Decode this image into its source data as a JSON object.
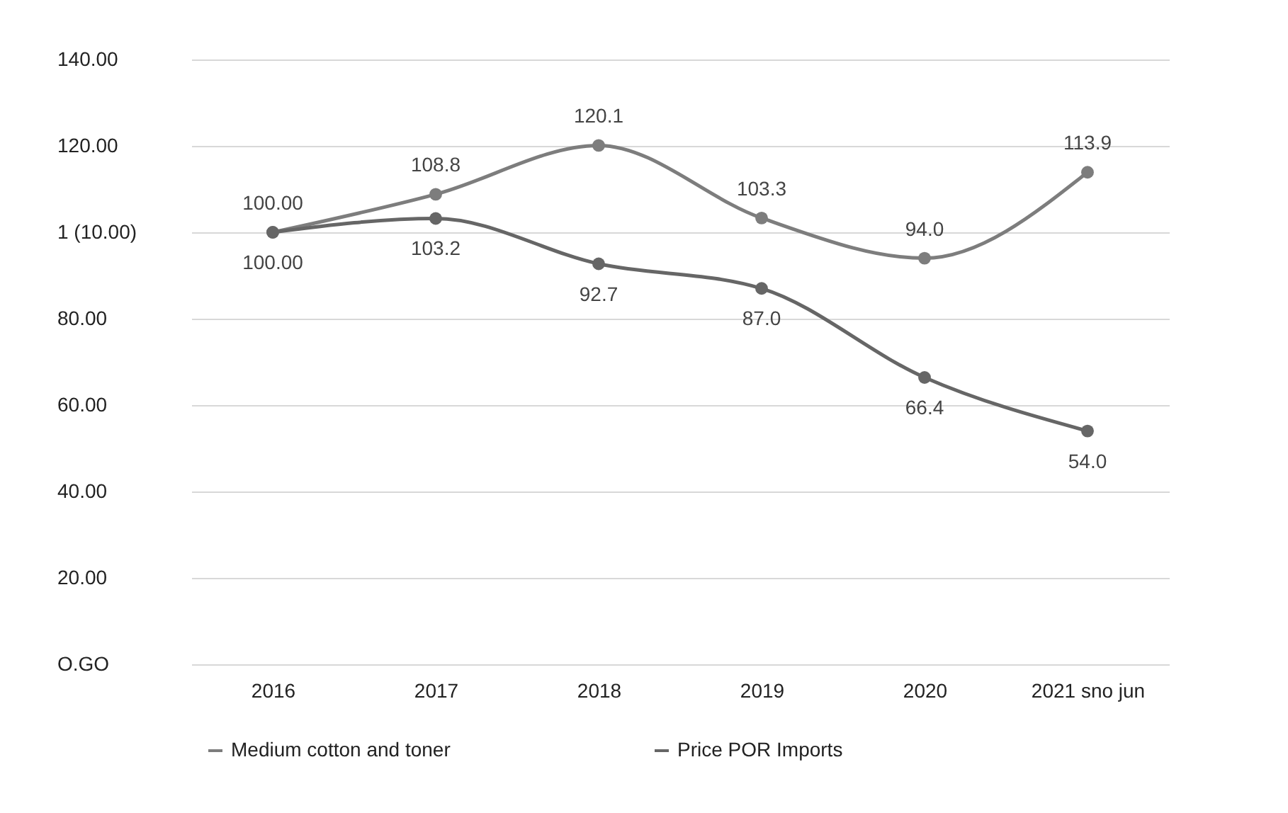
{
  "chart_data": {
    "type": "line",
    "categories": [
      "2016",
      "2017",
      "2018",
      "2019",
      "2020",
      "2021 sno jun"
    ],
    "series": [
      {
        "name": "Medium cotton and toner",
        "color": "#7d7d7d",
        "values": [
          100,
          108.8,
          120.1,
          103.3,
          94.0,
          113.9
        ],
        "value_labels": [
          "100.00",
          "108.8",
          "120.1",
          "103.3",
          "94.0",
          "113.9"
        ]
      },
      {
        "name": "Price POR Imports",
        "color": "#666666",
        "values": [
          100,
          103.2,
          92.7,
          87.0,
          66.4,
          54.0
        ],
        "value_labels": [
          "100.00",
          "103.2",
          "92.7",
          "87.0",
          "66.4",
          "54.0"
        ]
      }
    ],
    "ylim": [
      0,
      140
    ],
    "yticks": [
      {
        "value": 0,
        "label": "O.GO"
      },
      {
        "value": 20,
        "label": "20.00"
      },
      {
        "value": 40,
        "label": "40.00"
      },
      {
        "value": 60,
        "label": "60.00"
      },
      {
        "value": 80,
        "label": "80.00"
      },
      {
        "value": 100,
        "label": "1 (10.00)"
      },
      {
        "value": 120,
        "label": "120.00"
      },
      {
        "value": 140,
        "label": "140.00"
      }
    ],
    "grid": "y",
    "legend": "bottom",
    "marker": "circle",
    "line_style": "solid"
  }
}
